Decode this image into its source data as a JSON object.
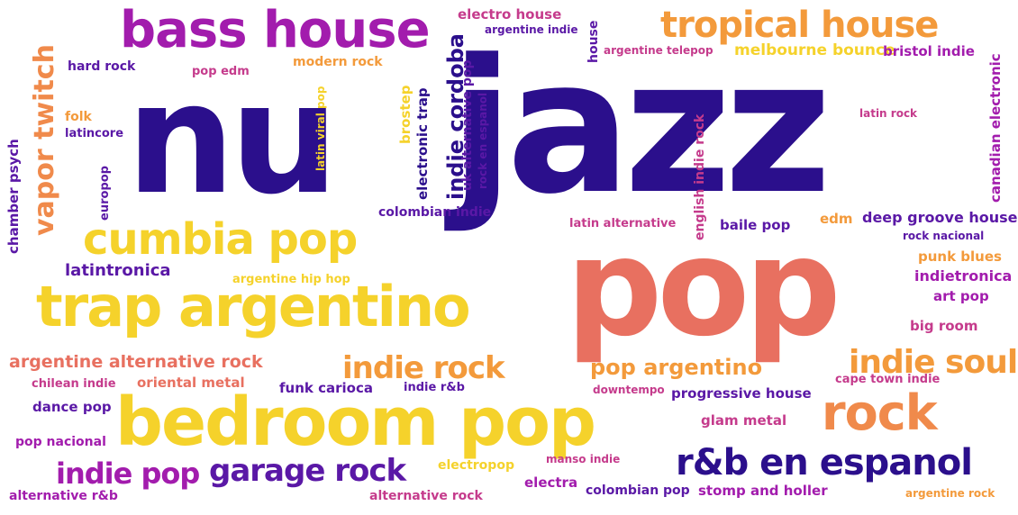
{
  "colors": {
    "navy": "#2b0f8c",
    "salmon": "#e87060",
    "purple": "#a21cad",
    "yellow": "#f5d22b",
    "orange": "#f39a3b",
    "violet": "#5a18a6",
    "pink": "#c53b8c",
    "coral": "#f08a4b",
    "background": "#ffffff"
  },
  "words": {
    "nu": "nu",
    "jazz": "jazz",
    "pop": "pop",
    "bedroom_pop": "bedroom pop",
    "trap_argentino": "trap argentino",
    "cumbia_pop": "cumbia pop",
    "bass_house": "bass house",
    "tropical_house": "tropical house",
    "rnb_en_espanol": "r&b en espanol",
    "rock": "rock",
    "indie_rock": "indie rock",
    "indie_soul": "indie soul",
    "pop_argentino": "pop argentino",
    "garage_rock": "garage rock",
    "indie_pop": "indie pop",
    "vapor_twitch": "vapor twitch",
    "argentine_alternative_rock": "argentine alternative rock",
    "electro_house": "electro house",
    "argentine_indie": "argentine indie",
    "argentine_telepop": "argentine telepop",
    "melbourne_bounce": "melbourne bounce",
    "bristol_indie": "bristol indie",
    "hard_rock": "hard rock",
    "pop_edm": "pop edm",
    "modern_rock": "modern rock",
    "house": "house",
    "folk": "folk",
    "latincore": "latincore",
    "chamber_psych": "chamber psych",
    "europop": "europop",
    "latin_viral_pop": "latin viral pop",
    "brostep": "brostep",
    "electronic_trap": "electronic trap",
    "indie_cordoba": "indie cordoba",
    "uk_alternative_pop": "uk alternative pop",
    "rock_en_espanol": "rock en espanol",
    "colombian_indie": "colombian indie",
    "english_indie_rock": "english indie rock",
    "latin_rock": "latin rock",
    "canadian_electronic": "canadian electronic",
    "latin_alternative": "latin alternative",
    "baile_pop": "baile pop",
    "edm": "edm",
    "deep_groove_house": "deep groove house",
    "rock_nacional": "rock nacional",
    "punk_blues": "punk blues",
    "indietronica": "indietronica",
    "art_pop": "art pop",
    "big_room": "big room",
    "latintronica": "latintronica",
    "argentine_hip_hop": "argentine hip hop",
    "chilean_indie": "chilean indie",
    "oriental_metal": "oriental metal",
    "funk_carioca": "funk carioca",
    "indie_rnb": "indie r&b",
    "downtempo": "downtempo",
    "progressive_house": "progressive house",
    "cape_town_indie": "cape town indie",
    "dance_pop": "dance pop",
    "glam_metal": "glam metal",
    "pop_nacional": "pop nacional",
    "electropop": "electropop",
    "manso_indie": "manso indie",
    "electra": "electra",
    "colombian_pop": "colombian pop",
    "stomp_and_holler": "stomp and holler",
    "alternative_rnb": "alternative r&b",
    "alternative_rock": "alternative rock",
    "argentine_rock": "argentine rock"
  }
}
